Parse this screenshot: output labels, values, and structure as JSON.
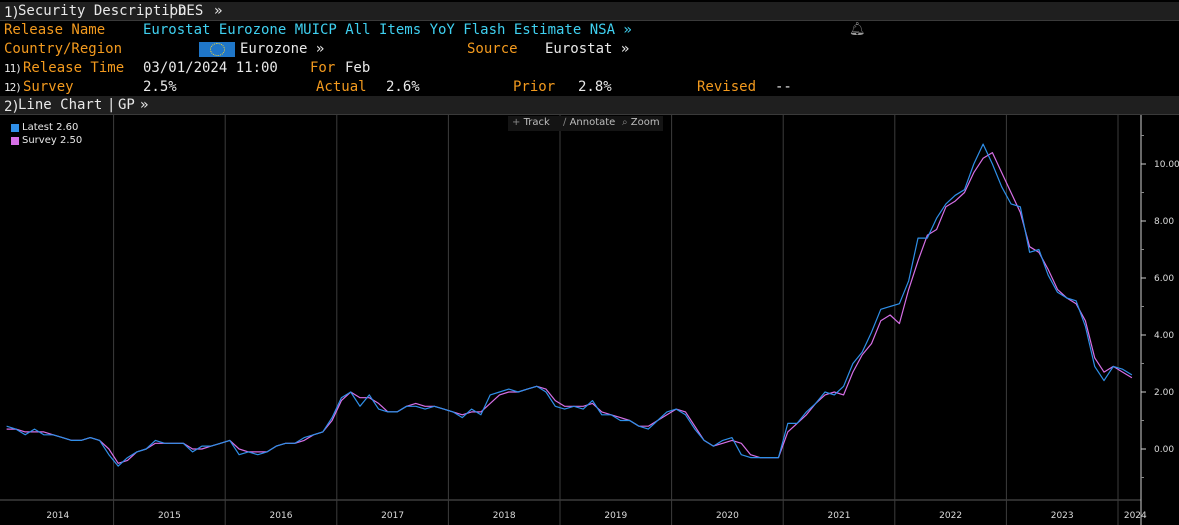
{
  "header": {
    "num": "1)",
    "title": "Security Description",
    "sep": "|",
    "code": "DES",
    "more": "»"
  },
  "release": {
    "name_label": "Release Name",
    "name_value": "Eurostat Eurozone MUICP All Items YoY Flash Estimate NSA »",
    "country_label": "Country/Region",
    "country_value": "Eurozone »",
    "source_label": "Source",
    "source_value": "Eurostat »",
    "time_num": "11)",
    "time_label": "Release Time",
    "time_value": "03/01/2024 11:00",
    "for_label": "For",
    "for_value": "Feb",
    "survey_num": "12)",
    "survey_label": "Survey",
    "survey_value": "2.5%",
    "actual_label": "Actual",
    "actual_value": "2.6%",
    "prior_label": "Prior",
    "prior_value": "2.8%",
    "revised_label": "Revised",
    "revised_value": "--"
  },
  "chart_header": {
    "num": "2)",
    "title": "Line Chart",
    "sep": "|",
    "code": "GP",
    "more": "»"
  },
  "toolbar": {
    "track": "Track",
    "annotate": "Annotate",
    "zoom": "Zoom"
  },
  "colors": {
    "orange": "#f39a1e",
    "cyan": "#3fd0f0",
    "latest": "#2f8fe8",
    "survey": "#d66fe6",
    "flag": "#1f76c8"
  },
  "chart_data": {
    "type": "line",
    "grid": "vertical year separators",
    "legend_position": "top-left",
    "ylim": [
      -1.7,
      11.5
    ],
    "y_ticks": [
      "10.00",
      "8.00",
      "6.00",
      "4.00",
      "2.00",
      "0.00"
    ],
    "y_tick_values": [
      10,
      8,
      6,
      4,
      2,
      0
    ],
    "x_start": "2014-01",
    "x_end": "2024-02",
    "x_tick_labels": [
      "2014",
      "2015",
      "2016",
      "2017",
      "2018",
      "2019",
      "2020",
      "2021",
      "2022",
      "2023",
      "2024"
    ],
    "series": [
      {
        "name": "Latest 2.60",
        "values": [
          0.8,
          0.7,
          0.5,
          0.7,
          0.5,
          0.5,
          0.4,
          0.3,
          0.3,
          0.4,
          0.3,
          -0.2,
          -0.6,
          -0.3,
          -0.1,
          0.0,
          0.3,
          0.2,
          0.2,
          0.2,
          -0.1,
          0.1,
          0.1,
          0.2,
          0.3,
          -0.2,
          -0.1,
          -0.2,
          -0.1,
          0.1,
          0.2,
          0.2,
          0.4,
          0.5,
          0.6,
          1.1,
          1.8,
          2.0,
          1.5,
          1.9,
          1.4,
          1.3,
          1.3,
          1.5,
          1.5,
          1.4,
          1.5,
          1.4,
          1.3,
          1.1,
          1.4,
          1.2,
          1.9,
          2.0,
          2.1,
          2.0,
          2.1,
          2.2,
          2.0,
          1.5,
          1.4,
          1.5,
          1.4,
          1.7,
          1.2,
          1.2,
          1.0,
          1.0,
          0.8,
          0.7,
          1.0,
          1.3,
          1.4,
          1.2,
          0.7,
          0.3,
          0.1,
          0.3,
          0.4,
          -0.2,
          -0.3,
          -0.3,
          -0.3,
          -0.3,
          0.9,
          0.9,
          1.3,
          1.6,
          2.0,
          1.9,
          2.2,
          3.0,
          3.4,
          4.1,
          4.9,
          5.0,
          5.1,
          5.9,
          7.4,
          7.4,
          8.1,
          8.6,
          8.9,
          9.1,
          10.0,
          10.7,
          10.0,
          9.2,
          8.6,
          8.5,
          6.9,
          7.0,
          6.1,
          5.5,
          5.3,
          5.2,
          4.3,
          2.9,
          2.4,
          2.9,
          2.8,
          2.6
        ]
      },
      {
        "name": "Survey 2.50",
        "values": [
          0.7,
          0.7,
          0.6,
          0.6,
          0.6,
          0.5,
          0.4,
          0.3,
          0.3,
          0.4,
          0.3,
          0.0,
          -0.5,
          -0.4,
          -0.1,
          0.0,
          0.2,
          0.2,
          0.2,
          0.2,
          0.0,
          0.0,
          0.1,
          0.2,
          0.3,
          0.0,
          -0.1,
          -0.1,
          -0.1,
          0.1,
          0.2,
          0.2,
          0.3,
          0.5,
          0.6,
          1.0,
          1.7,
          2.0,
          1.8,
          1.8,
          1.6,
          1.3,
          1.3,
          1.5,
          1.6,
          1.5,
          1.5,
          1.4,
          1.3,
          1.2,
          1.3,
          1.3,
          1.6,
          1.9,
          2.0,
          2.0,
          2.1,
          2.2,
          2.1,
          1.7,
          1.5,
          1.5,
          1.5,
          1.6,
          1.3,
          1.2,
          1.1,
          1.0,
          0.8,
          0.8,
          1.0,
          1.2,
          1.4,
          1.3,
          0.8,
          0.3,
          0.1,
          0.2,
          0.3,
          0.2,
          -0.2,
          -0.3,
          -0.3,
          -0.3,
          0.6,
          0.9,
          1.2,
          1.6,
          1.9,
          2.0,
          1.9,
          2.7,
          3.3,
          3.7,
          4.5,
          4.7,
          4.4,
          5.6,
          6.6,
          7.5,
          7.7,
          8.5,
          8.7,
          9.0,
          9.7,
          10.2,
          10.4,
          9.7,
          9.0,
          8.3,
          7.1,
          6.9,
          6.3,
          5.6,
          5.3,
          5.1,
          4.5,
          3.2,
          2.7,
          2.9,
          2.7,
          2.5
        ]
      }
    ]
  }
}
